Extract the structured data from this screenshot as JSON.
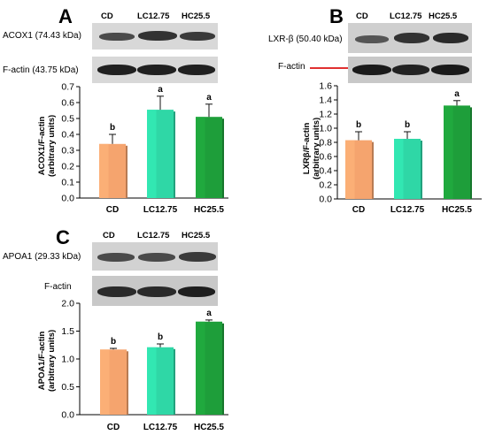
{
  "colors": {
    "cd": "#f5a46e",
    "lc": "#2fd7a6",
    "hc": "#1e9e3a",
    "axis": "#000000"
  },
  "panels": [
    {
      "letter": "A",
      "blots": [
        {
          "label": "ACOX1 (74.43 kDa)",
          "has_arrow": false
        },
        {
          "label": "F-actin (43.75 kDa)",
          "has_arrow": false
        }
      ],
      "lanes": [
        "CD",
        "LC12.75",
        "HC25.5"
      ],
      "ylabel": [
        "ACOX1/F-actin",
        "(arbitrary units)"
      ]
    },
    {
      "letter": "B",
      "blots": [
        {
          "label": "LXR-β (50.40 kDa)",
          "has_arrow": false
        },
        {
          "label": "F-actin",
          "has_arrow": true
        }
      ],
      "lanes": [
        "CD",
        "LC12.75",
        "HC25.5"
      ],
      "ylabel": [
        "LXRβ/F-actin",
        "(arbitrary units)"
      ]
    },
    {
      "letter": "C",
      "blots": [
        {
          "label": "APOA1 (29.33 kDa)",
          "has_arrow": false
        },
        {
          "label": "F-actin",
          "has_arrow": false
        }
      ],
      "lanes": [
        "CD",
        "LC12.75",
        "HC25.5"
      ],
      "ylabel": [
        "APOA1/F-actin",
        "(arbitrary units)"
      ]
    }
  ],
  "chart_data": [
    {
      "type": "bar",
      "categories": [
        "CD",
        "LC12.75",
        "HC25.5"
      ],
      "values": [
        0.34,
        0.555,
        0.51
      ],
      "errors": [
        0.06,
        0.085,
        0.08
      ],
      "letters": [
        "b",
        "a",
        "a"
      ],
      "ylim": [
        0.0,
        0.7
      ],
      "ticks": [
        "0.0",
        "0.1",
        "0.2",
        "0.3",
        "0.4",
        "0.5",
        "0.6",
        "0.7"
      ]
    },
    {
      "type": "bar",
      "categories": [
        "CD",
        "LC12.75",
        "HC25.5"
      ],
      "values": [
        0.83,
        0.85,
        1.32
      ],
      "errors": [
        0.12,
        0.1,
        0.07
      ],
      "letters": [
        "b",
        "b",
        "a"
      ],
      "ylim": [
        0.0,
        1.6
      ],
      "ticks": [
        "0.0",
        "0.2",
        "0.4",
        "0.6",
        "0.8",
        "1.0",
        "1.2",
        "1.4",
        "1.6"
      ]
    },
    {
      "type": "bar",
      "categories": [
        "CD",
        "LC12.75",
        "HC25.5"
      ],
      "values": [
        1.17,
        1.21,
        1.67
      ],
      "errors": [
        0.02,
        0.06,
        0.03
      ],
      "letters": [
        "b",
        "b",
        "a"
      ],
      "ylim": [
        0.0,
        2.0
      ],
      "ticks": [
        "0.0",
        "0.5",
        "1.0",
        "1.5",
        "2.0"
      ]
    }
  ]
}
